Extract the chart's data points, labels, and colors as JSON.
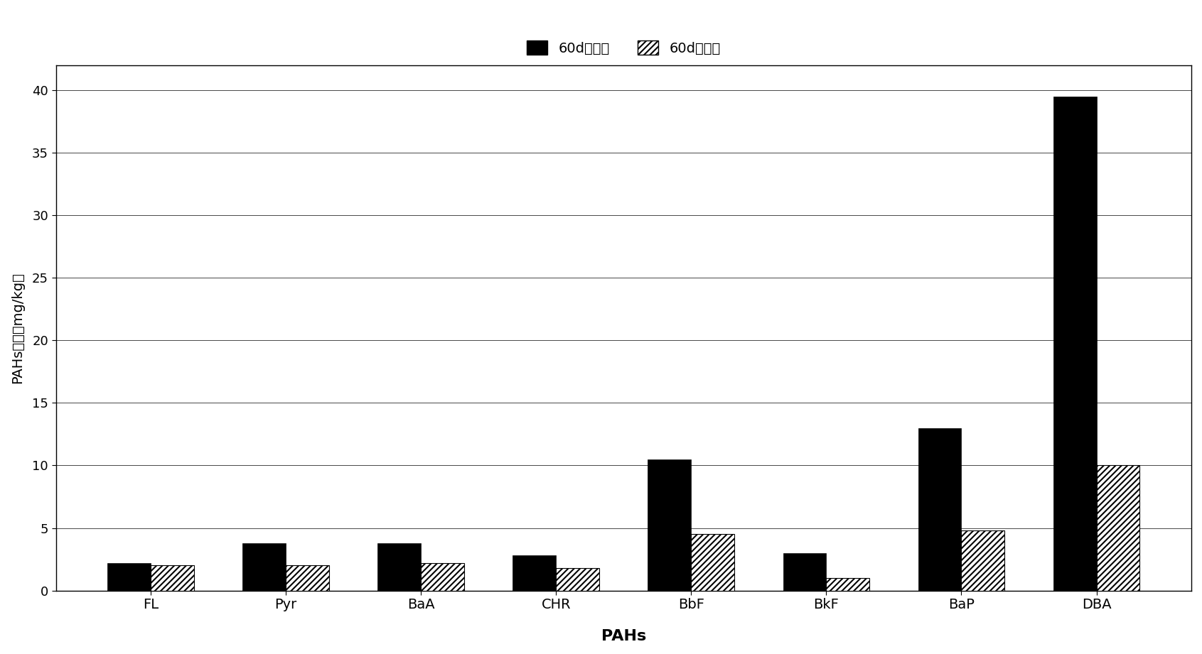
{
  "categories": [
    "FL",
    "Pyr",
    "BaA",
    "CHR",
    "BbF",
    "BkF",
    "BaP",
    "DBA"
  ],
  "before": [
    2.2,
    3.8,
    3.8,
    2.8,
    10.5,
    3.0,
    13.0,
    39.5
  ],
  "after": [
    2.0,
    2.0,
    2.2,
    1.8,
    4.5,
    1.0,
    4.8,
    10.0
  ],
  "ylabel": "PAHs浓度（mg/kg）",
  "xlabel": "PAHs",
  "legend_before": "60d种植前",
  "legend_after": "60d种植后",
  "ylim": [
    0,
    42
  ],
  "yticks": [
    0,
    5,
    10,
    15,
    20,
    25,
    30,
    35,
    40
  ],
  "bar_width": 0.32,
  "figsize": [
    16.91,
    9.21
  ],
  "dpi": 100
}
